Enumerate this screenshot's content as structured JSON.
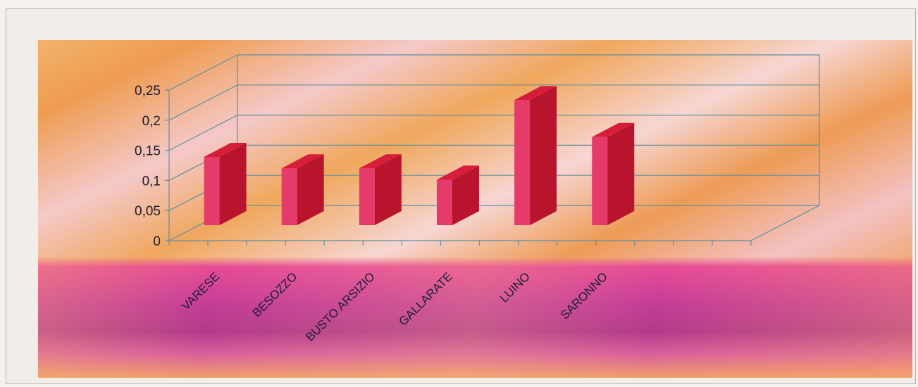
{
  "chart_data": {
    "type": "bar",
    "categories": [
      "VARESE",
      "BESOZZO",
      "BUSTO ARSIZIO",
      "GALLARATE",
      "LUINO",
      "SARONNO"
    ],
    "values": [
      0.12,
      0.1,
      0.1,
      0.08,
      0.22,
      0.155
    ],
    "ylim": [
      0,
      0.25
    ],
    "yticks": [
      "0",
      "0,05",
      "0,1",
      "0,15",
      "0,2",
      "0,25"
    ],
    "grid": true,
    "bar_colors": {
      "front": "#e63b6a",
      "side": "#b8142e",
      "top": "#d61e3a"
    }
  }
}
